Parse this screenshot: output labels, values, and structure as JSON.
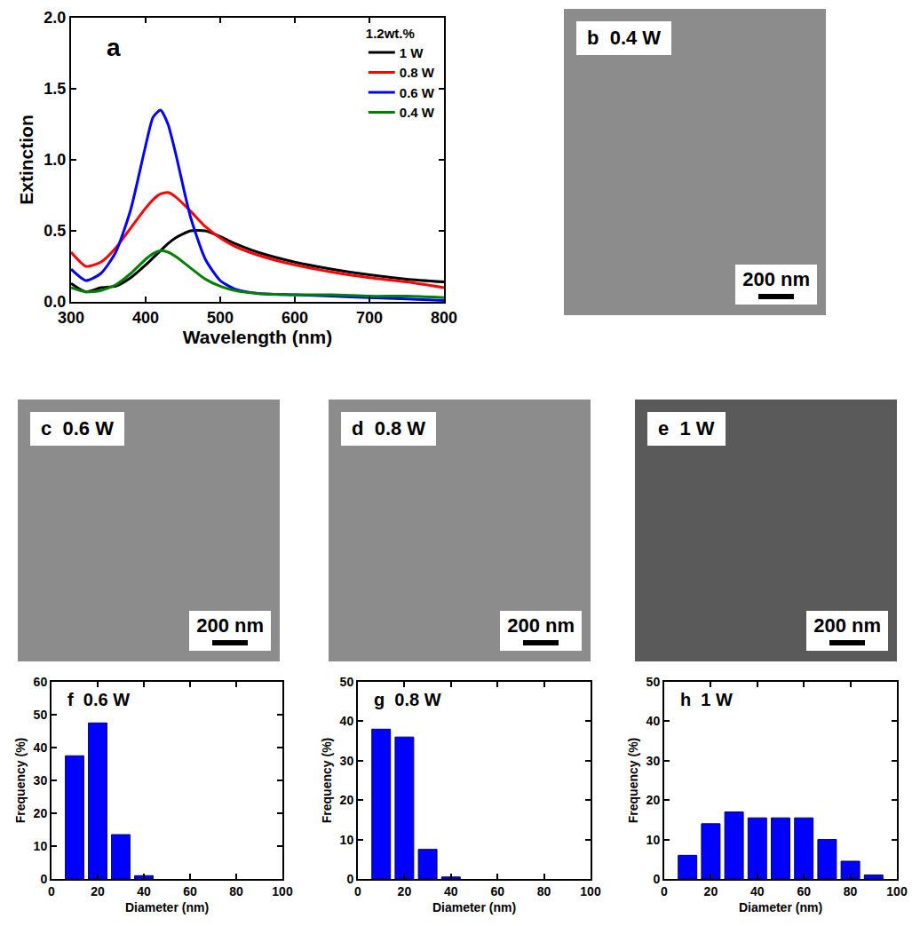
{
  "chart_data": [
    {
      "panel": "a",
      "type": "line",
      "x_label": "Wavelength (nm)",
      "y_label": "Extinction",
      "legend_title": "1.2wt.%",
      "legend": "upper right",
      "x": [
        300,
        320,
        340,
        360,
        380,
        400,
        410,
        420,
        430,
        440,
        460,
        480,
        500,
        520,
        550,
        600,
        650,
        700,
        750,
        800
      ],
      "series": [
        {
          "name": "1 W",
          "color": "#000000",
          "values": [
            0.13,
            0.07,
            0.1,
            0.11,
            0.17,
            0.26,
            0.31,
            0.36,
            0.41,
            0.45,
            0.5,
            0.5,
            0.46,
            0.41,
            0.35,
            0.28,
            0.23,
            0.19,
            0.16,
            0.14
          ]
        },
        {
          "name": "0.8 W",
          "color": "#ff0000",
          "values": [
            0.35,
            0.25,
            0.28,
            0.38,
            0.52,
            0.66,
            0.72,
            0.76,
            0.77,
            0.74,
            0.64,
            0.53,
            0.45,
            0.39,
            0.33,
            0.26,
            0.21,
            0.17,
            0.14,
            0.1
          ]
        },
        {
          "name": "0.6 W",
          "color": "#0000ff",
          "values": [
            0.23,
            0.15,
            0.2,
            0.35,
            0.65,
            1.1,
            1.3,
            1.35,
            1.25,
            1.05,
            0.6,
            0.3,
            0.15,
            0.09,
            0.06,
            0.05,
            0.04,
            0.03,
            0.02,
            0.01
          ]
        },
        {
          "name": "0.4 W",
          "color": "#008000",
          "values": [
            0.1,
            0.07,
            0.08,
            0.12,
            0.2,
            0.3,
            0.34,
            0.36,
            0.35,
            0.32,
            0.24,
            0.16,
            0.11,
            0.08,
            0.06,
            0.05,
            0.05,
            0.04,
            0.04,
            0.03
          ]
        }
      ],
      "xlim": [
        300,
        800
      ],
      "xticks": [
        300,
        400,
        500,
        600,
        700,
        800
      ],
      "ylim": [
        0,
        2
      ],
      "yticks": [
        {
          "value": 0,
          "label": "0.0"
        },
        {
          "value": 0.5,
          "label": "0.5"
        },
        {
          "value": 1,
          "label": "1.0"
        },
        {
          "value": 1.5,
          "label": "1.5"
        },
        {
          "value": 2,
          "label": "2.0"
        }
      ]
    },
    {
      "panel": "f",
      "type": "histogram",
      "title": "0.6 W",
      "x_label": "Diameter (nm)",
      "y_label": "Frequency (%)",
      "bins": [
        5,
        15,
        25,
        35,
        45
      ],
      "counts": [
        37.5,
        47.5,
        13.5,
        1
      ],
      "color": "#0000ff",
      "xlim": [
        0,
        100
      ],
      "xticks": [
        0,
        20,
        40,
        60,
        80,
        100
      ],
      "ylim": [
        0,
        60
      ],
      "yticks": [
        0,
        10,
        20,
        30,
        40,
        50,
        60
      ]
    },
    {
      "panel": "g",
      "type": "histogram",
      "title": "0.8 W",
      "x_label": "Diameter (nm)",
      "y_label": "Frequency (%)",
      "bins": [
        5,
        15,
        25,
        35,
        45
      ],
      "counts": [
        38,
        36,
        7.5,
        0.5
      ],
      "color": "#0000ff",
      "xlim": [
        0,
        100
      ],
      "xticks": [
        0,
        20,
        40,
        60,
        80,
        100
      ],
      "ylim": [
        0,
        50
      ],
      "yticks": [
        0,
        10,
        20,
        30,
        40,
        50
      ]
    },
    {
      "panel": "h",
      "type": "histogram",
      "title": "1 W",
      "x_label": "Diameter (nm)",
      "y_label": "Frequency (%)",
      "bins": [
        5,
        15,
        25,
        35,
        45,
        55,
        65,
        75,
        85,
        95
      ],
      "counts": [
        6,
        14,
        17,
        15.5,
        15.5,
        15.5,
        10,
        4.5,
        1
      ],
      "color": "#0000ff",
      "xlim": [
        0,
        100
      ],
      "xticks": [
        0,
        20,
        40,
        60,
        80,
        100
      ],
      "ylim": [
        0,
        50
      ],
      "yticks": [
        0,
        10,
        20,
        30,
        40,
        50
      ]
    }
  ],
  "images": [
    {
      "panel": "b",
      "label": "0.4 W",
      "scale_bar": "200 nm"
    },
    {
      "panel": "c",
      "label": "0.6 W",
      "scale_bar": "200 nm"
    },
    {
      "panel": "d",
      "label": "0.8 W",
      "scale_bar": "200 nm"
    },
    {
      "panel": "e",
      "label": "1 W",
      "scale_bar": "200 nm"
    }
  ]
}
